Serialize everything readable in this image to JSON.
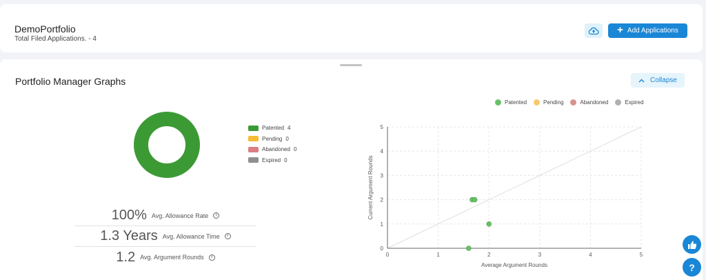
{
  "header": {
    "portfolio_name": "DemoPortfolio",
    "filed_count": "Total Filed Applications. - 4",
    "add_button": "Add Applications",
    "upload_icon": "cloud-upload-icon"
  },
  "graphs": {
    "title": "Portfolio Manager Graphs",
    "collapse_label": "Collapse",
    "donut_legend": [
      {
        "label": "Patented",
        "count": "4",
        "color": "#3c9a35"
      },
      {
        "label": "Pending",
        "count": "0",
        "color": "#f7bb36"
      },
      {
        "label": "Abandoned",
        "count": "0",
        "color": "#dc7d80"
      },
      {
        "label": "Expired",
        "count": "0",
        "color": "#8f8f8f"
      }
    ],
    "stats": [
      {
        "value": "100%",
        "label": "Avg. Allowance Rate"
      },
      {
        "value": "1.3 Years",
        "label": "Avg. Allowance Time"
      },
      {
        "value": "1.2",
        "label": "Avg. Argument Rounds"
      }
    ],
    "scatter_legend": [
      {
        "label": "Patented",
        "color": "#6abf69"
      },
      {
        "label": "Pending",
        "color": "#f7c96a"
      },
      {
        "label": "Abandoned",
        "color": "#d9928e"
      },
      {
        "label": "Expired",
        "color": "#b0b0b0"
      }
    ]
  },
  "chart_data": [
    {
      "type": "pie",
      "categories": [
        "Patented",
        "Pending",
        "Abandoned",
        "Expired"
      ],
      "values": [
        4,
        0,
        0,
        0
      ],
      "colors": [
        "#3c9a35",
        "#f7bb36",
        "#dc7d80",
        "#8f8f8f"
      ]
    },
    {
      "type": "scatter",
      "xlabel": "Average Argument Rounds",
      "ylabel": "Current Argument Rounds",
      "xlim": [
        0,
        5
      ],
      "ylim": [
        0,
        5
      ],
      "xticks": [
        "0",
        "1",
        "2",
        "3",
        "4",
        "5"
      ],
      "yticks": [
        "0",
        "1",
        "2",
        "3",
        "4",
        "5"
      ],
      "grid": true,
      "series": [
        {
          "name": "Patented",
          "color": "#6abf69",
          "points": [
            [
              1.6,
              0
            ],
            [
              1.67,
              2
            ],
            [
              1.72,
              2
            ],
            [
              2.0,
              1
            ]
          ]
        }
      ]
    }
  ],
  "fabs": {
    "like_icon": "thumbs-up-icon",
    "help_label": "?"
  }
}
